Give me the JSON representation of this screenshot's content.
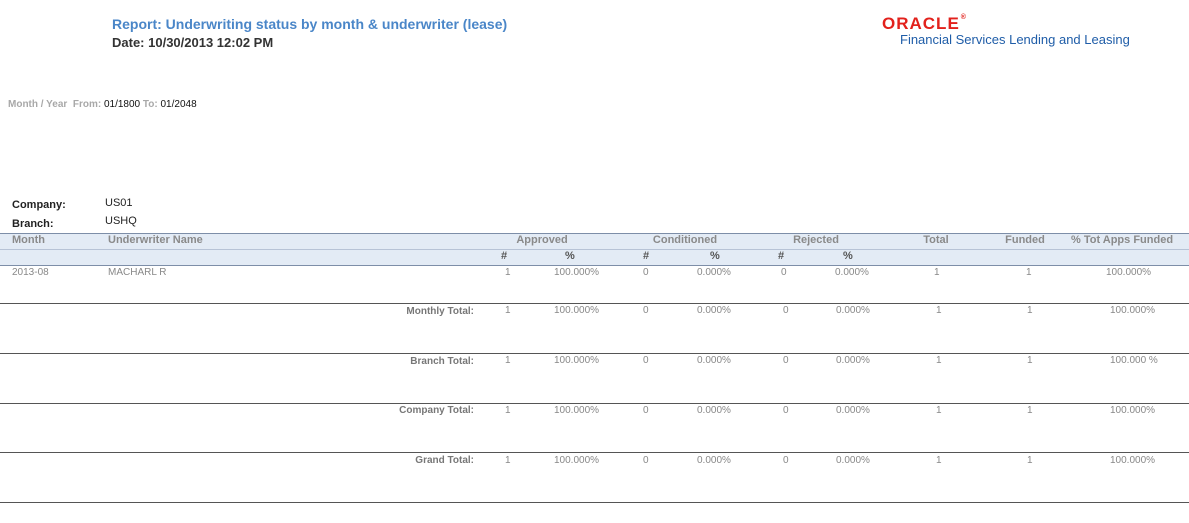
{
  "report": {
    "title": "Report: Underwriting status by month & underwriter (lease)",
    "date": "Date: 10/30/2013  12:02 PM"
  },
  "logo": {
    "word": "ORACLE",
    "registered": "®",
    "subtitle": "Financial Services Lending and Leasing"
  },
  "filter": {
    "label": "Month / Year",
    "from_label": "From:",
    "from_value": "01/1800",
    "to_label": "To:",
    "to_value": "01/2048"
  },
  "meta": {
    "company_label": "Company:",
    "company_value": "US01",
    "branch_label": "Branch:",
    "branch_value": "USHQ"
  },
  "columns": {
    "month": "Month",
    "underwriter": "Underwriter Name",
    "approved": "Approved",
    "conditioned": "Conditioned",
    "rejected": "Rejected",
    "total": "Total",
    "funded": "Funded",
    "pct_funded": "% Tot Apps Funded",
    "num": "#",
    "pct": "%"
  },
  "rows": [
    {
      "label": "",
      "month": "2013-08",
      "underwriter": "MACHARL R",
      "app_n": "1",
      "app_p": "100.000%",
      "con_n": "0",
      "con_p": "0.000%",
      "rej_n": "0",
      "rej_p": "0.000%",
      "total": "1",
      "funded": "1",
      "pct_funded": "100.000%"
    },
    {
      "label": "Monthly Total:",
      "app_n": "1",
      "app_p": "100.000%",
      "con_n": "0",
      "con_p": "0.000%",
      "rej_n": "0",
      "rej_p": "0.000%",
      "total": "1",
      "funded": "1",
      "pct_funded": "100.000%"
    },
    {
      "label": "Branch Total:",
      "app_n": "1",
      "app_p": "100.000%",
      "con_n": "0",
      "con_p": "0.000%",
      "rej_n": "0",
      "rej_p": "0.000%",
      "total": "1",
      "funded": "1",
      "pct_funded": "100.000 %"
    },
    {
      "label": "Company Total:",
      "app_n": "1",
      "app_p": "100.000%",
      "con_n": "0",
      "con_p": "0.000%",
      "rej_n": "0",
      "rej_p": "0.000%",
      "total": "1",
      "funded": "1",
      "pct_funded": "100.000%"
    },
    {
      "label": "Grand Total:",
      "app_n": "1",
      "app_p": "100.000%",
      "con_n": "0",
      "con_p": "0.000%",
      "rej_n": "0",
      "rej_p": "0.000%",
      "total": "1",
      "funded": "1",
      "pct_funded": "100.000%"
    }
  ]
}
